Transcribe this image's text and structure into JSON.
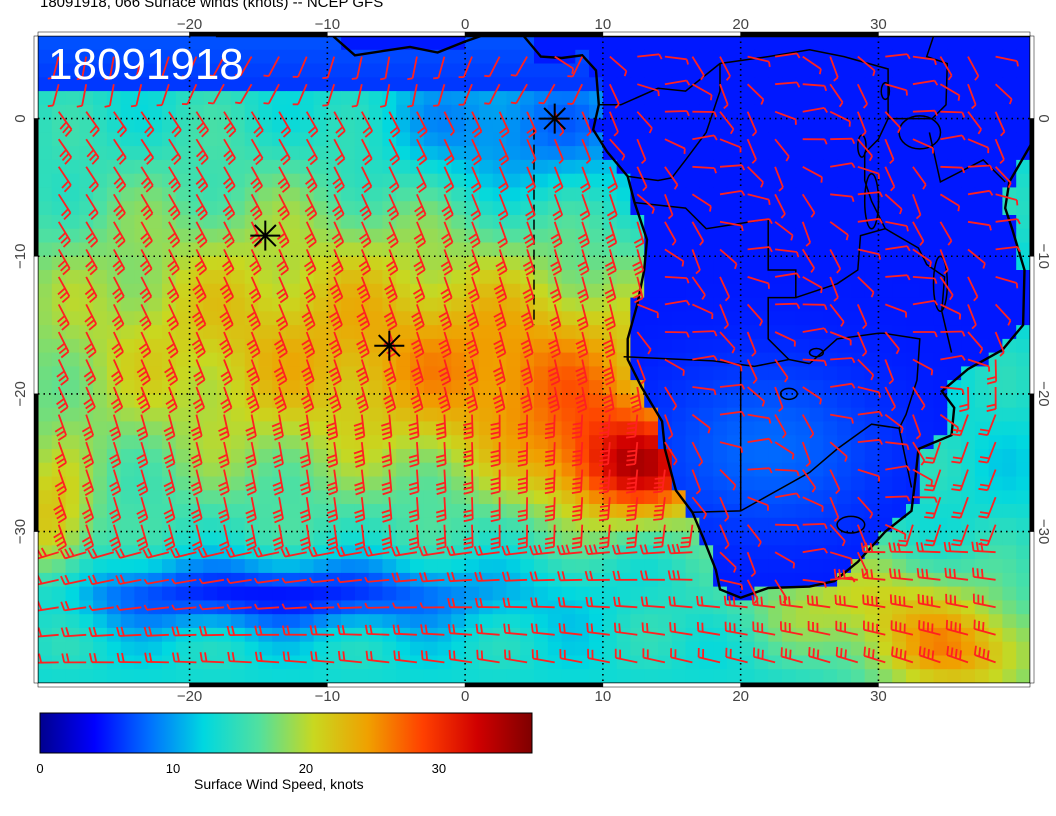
{
  "header": {
    "title": "18091918, 066 Surface winds (knots) -- NCEP GFS",
    "stamp": "18091918"
  },
  "map": {
    "lon_range": [
      -31,
      41
    ],
    "lat_range": [
      6,
      -41
    ],
    "lon_ticks": [
      -20,
      -10,
      0,
      10,
      20,
      30
    ],
    "lat_ticks": [
      0,
      -10,
      -20,
      -30
    ],
    "gridlines": "dotted",
    "storm_markers": [
      {
        "lon": 6.5,
        "lat": 0.0
      },
      {
        "lon": -14.5,
        "lat": -8.5
      },
      {
        "lon": -5.5,
        "lat": -16.5
      }
    ],
    "colors": {
      "barb": "#ff2020",
      "coast": "#000000",
      "ocean_low": "#1a3fd1",
      "land": "#1436c8"
    }
  },
  "colorbar": {
    "label": "Surface Wind Speed, knots",
    "ticks": [
      0,
      10,
      20,
      30
    ],
    "range": [
      0,
      37
    ],
    "colors": [
      "#00008f",
      "#0000ff",
      "#0070ff",
      "#00d8e0",
      "#50e0a0",
      "#c8d820",
      "#f0a000",
      "#ff4000",
      "#d00000",
      "#7f0000"
    ]
  }
}
